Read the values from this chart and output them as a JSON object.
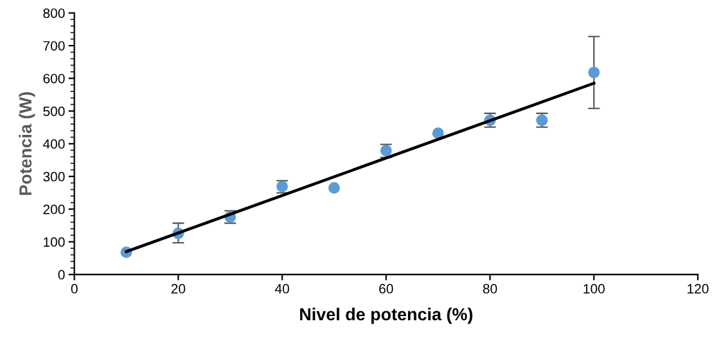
{
  "chart_data": {
    "type": "scatter",
    "xlabel": "Nivel de potencia (%)",
    "ylabel": "Potencia (W)",
    "xlim": [
      0,
      120
    ],
    "xticks": [
      0,
      20,
      40,
      60,
      80,
      100,
      120
    ],
    "ylim": [
      0,
      800
    ],
    "yticks": [
      0,
      100,
      200,
      300,
      400,
      500,
      600,
      700,
      800
    ],
    "grid": false,
    "legend": false,
    "marker": "circle",
    "series": [
      {
        "color": "#5b9bd5",
        "x": [
          10,
          20,
          30,
          40,
          50,
          60,
          70,
          80,
          90,
          100
        ],
        "values": [
          68,
          126,
          176,
          269,
          265,
          379,
          432,
          472,
          472,
          618
        ],
        "errors": [
          null,
          [
            97,
            157
          ],
          [
            157,
            195
          ],
          [
            250,
            287
          ],
          null,
          [
            358,
            398
          ],
          null,
          [
            451,
            493
          ],
          [
            451,
            493
          ],
          [
            508,
            728
          ]
        ]
      },
      {
        "type": "line",
        "color": "#000000",
        "x": [
          10,
          100
        ],
        "values": [
          70,
          585
        ],
        "marker": "none",
        "line_style": "solid"
      }
    ]
  }
}
